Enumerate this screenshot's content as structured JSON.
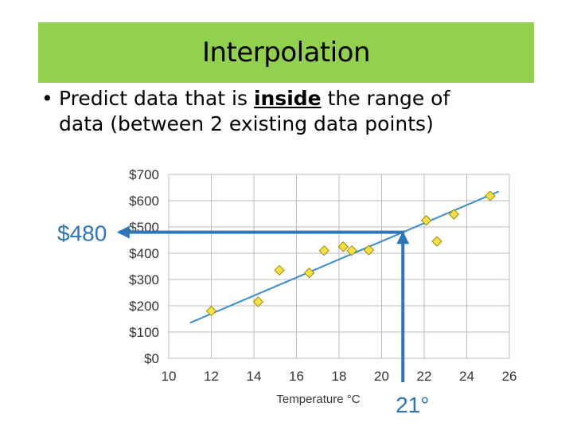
{
  "slide": {
    "title": "Interpolation",
    "bullet_pre": "Predict data that is ",
    "bullet_emph": "inside",
    "bullet_post": " the range of",
    "bullet_line2": "data (between 2 existing data points)"
  },
  "chart_data": {
    "type": "scatter",
    "xlabel": "Temperature °C",
    "ylabel": "",
    "xlim": [
      10,
      26
    ],
    "ylim": [
      0,
      700
    ],
    "x_ticks": [
      10,
      12,
      14,
      16,
      18,
      20,
      22,
      24,
      26
    ],
    "y_ticks": [
      0,
      100,
      200,
      300,
      400,
      500,
      600,
      700
    ],
    "y_tick_labels": [
      "$0",
      "$100",
      "$200",
      "$300",
      "$400",
      "$500",
      "$600",
      "$700"
    ],
    "grid": true,
    "points": [
      {
        "x": 12.0,
        "y": 180
      },
      {
        "x": 14.2,
        "y": 215
      },
      {
        "x": 15.2,
        "y": 335
      },
      {
        "x": 16.6,
        "y": 325
      },
      {
        "x": 17.3,
        "y": 410
      },
      {
        "x": 18.2,
        "y": 425
      },
      {
        "x": 18.6,
        "y": 410
      },
      {
        "x": 19.4,
        "y": 412
      },
      {
        "x": 22.1,
        "y": 525
      },
      {
        "x": 22.6,
        "y": 445
      },
      {
        "x": 23.4,
        "y": 548
      },
      {
        "x": 25.1,
        "y": 618
      }
    ],
    "trendline": {
      "x": [
        11.0,
        25.5
      ],
      "y": [
        135,
        635
      ]
    },
    "interpolation": {
      "x": 21,
      "y": 480,
      "x_label": "21°",
      "y_label": "$480"
    },
    "colors": {
      "marker_fill": "#f5e04a",
      "marker_stroke": "#a08a00",
      "line": "#3a8dc8",
      "arrow": "#2e75b6",
      "grid": "#bbbbbb"
    }
  }
}
